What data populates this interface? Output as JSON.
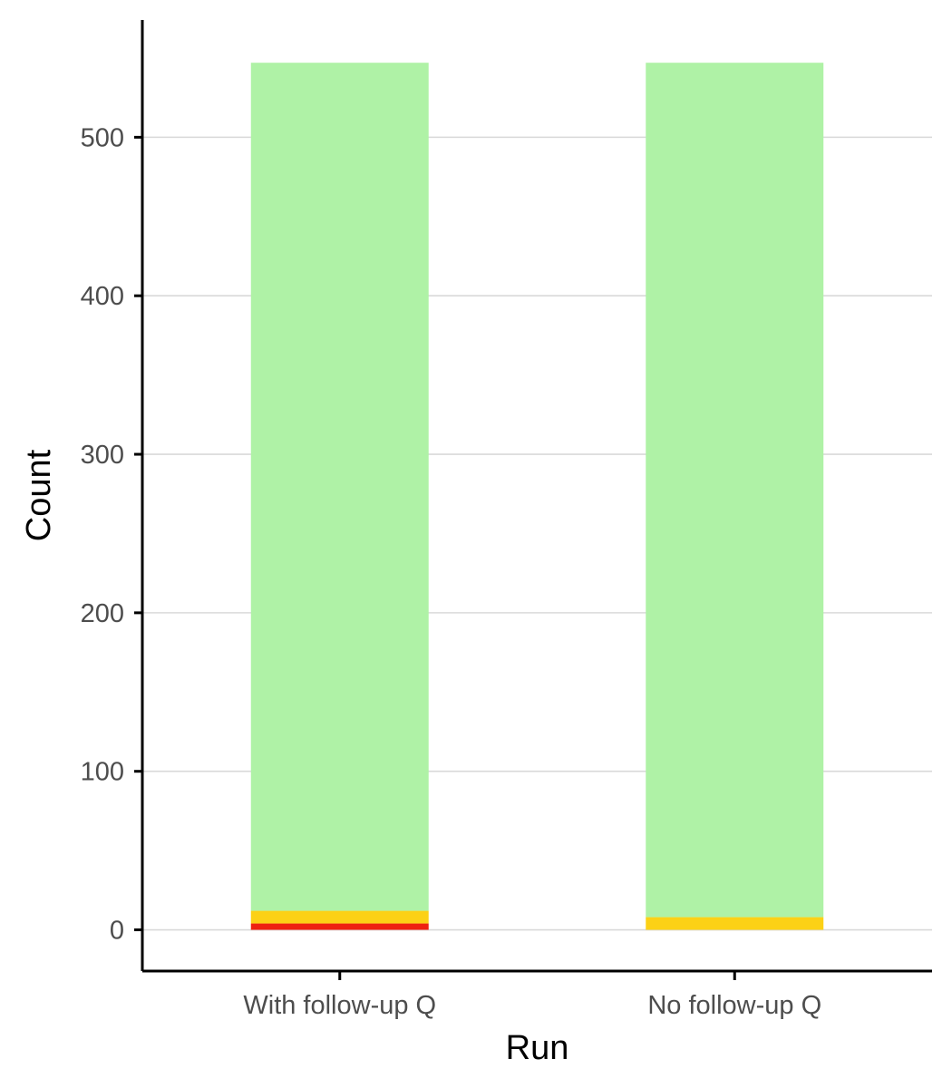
{
  "chart_data": {
    "type": "bar",
    "stacked": true,
    "title": "",
    "xlabel": "Run",
    "ylabel": "Count",
    "categories": [
      "With follow-up Q",
      "No follow-up Q"
    ],
    "series": [
      {
        "color": "#ee2211",
        "values": [
          4,
          0
        ]
      },
      {
        "color": "#fcd116",
        "values": [
          8,
          8
        ]
      },
      {
        "color": "#aff2a6",
        "values": [
          535,
          539
        ]
      }
    ],
    "ylim": [
      -26,
      574
    ],
    "yticks": [
      0,
      100,
      200,
      300,
      400,
      500
    ],
    "ytick_labels": [
      "0",
      "100",
      "200",
      "300",
      "400",
      "500"
    ],
    "grid": "horizontal-major",
    "gridline_color": "#d9d9d9",
    "legend": "none"
  }
}
